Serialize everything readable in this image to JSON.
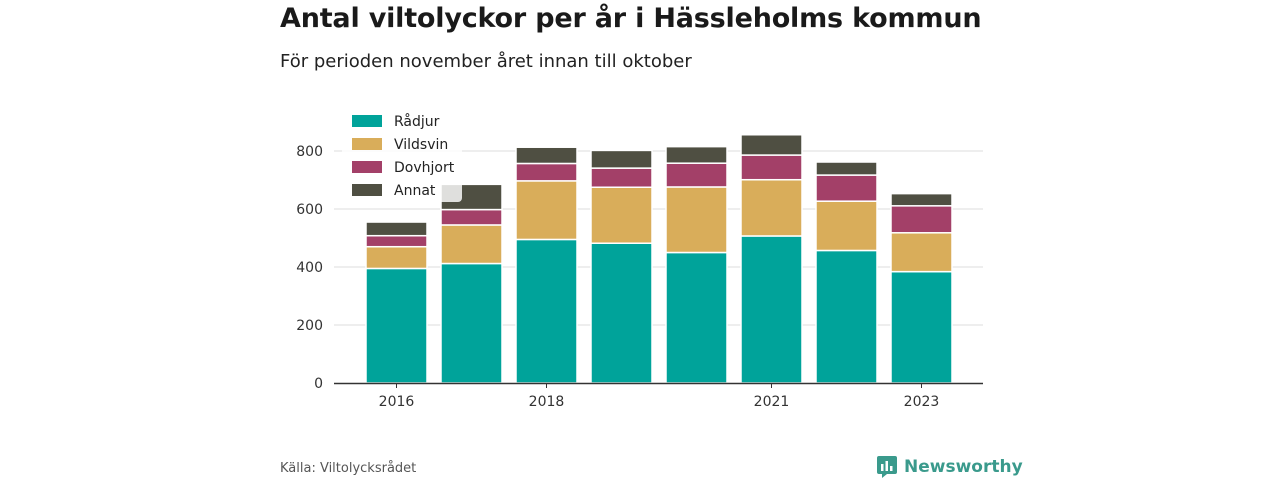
{
  "header": {
    "title": "Antal viltolyckor per år i Hässleholms kommun",
    "subtitle": "För perioden november året innan till oktober"
  },
  "footer": {
    "source": "Källa: Viltolycksrådet",
    "brand": "Newsworthy",
    "brand_icon": "newsworthy-logo-icon"
  },
  "colors": {
    "Rådjur": "#00a39a",
    "Vildsvin": "#d9ad5a",
    "Dovhjort": "#a34068",
    "Annat": "#4f4f42",
    "grid": "#dddddd",
    "axis": "#333333",
    "brand": "#3a9a8c"
  },
  "chart_data": {
    "type": "bar",
    "stacked": true,
    "title": "Antal viltolyckor per år i Hässleholms kommun",
    "subtitle": "För perioden november året innan till oktober",
    "categories": [
      "2016",
      "2017",
      "2018",
      "2019",
      "2020",
      "2021",
      "2022",
      "2023"
    ],
    "x_tick_labels": [
      "2016",
      "",
      "2018",
      "",
      "",
      "2021",
      "",
      "2023"
    ],
    "series": [
      {
        "name": "Rådjur",
        "values": [
          395,
          412,
          495,
          482,
          450,
          507,
          457,
          384
        ]
      },
      {
        "name": "Vildsvin",
        "values": [
          75,
          133,
          202,
          193,
          226,
          194,
          170,
          134
        ]
      },
      {
        "name": "Dovhjort",
        "values": [
          38,
          53,
          60,
          66,
          82,
          85,
          90,
          93
        ]
      },
      {
        "name": "Annat",
        "values": [
          47,
          87,
          56,
          61,
          57,
          70,
          45,
          42
        ]
      }
    ],
    "ylim": [
      0,
      900
    ],
    "y_ticks": [
      0,
      200,
      400,
      600,
      800
    ],
    "xlabel": "",
    "ylabel": "",
    "grid": true,
    "legend": "top-left"
  }
}
